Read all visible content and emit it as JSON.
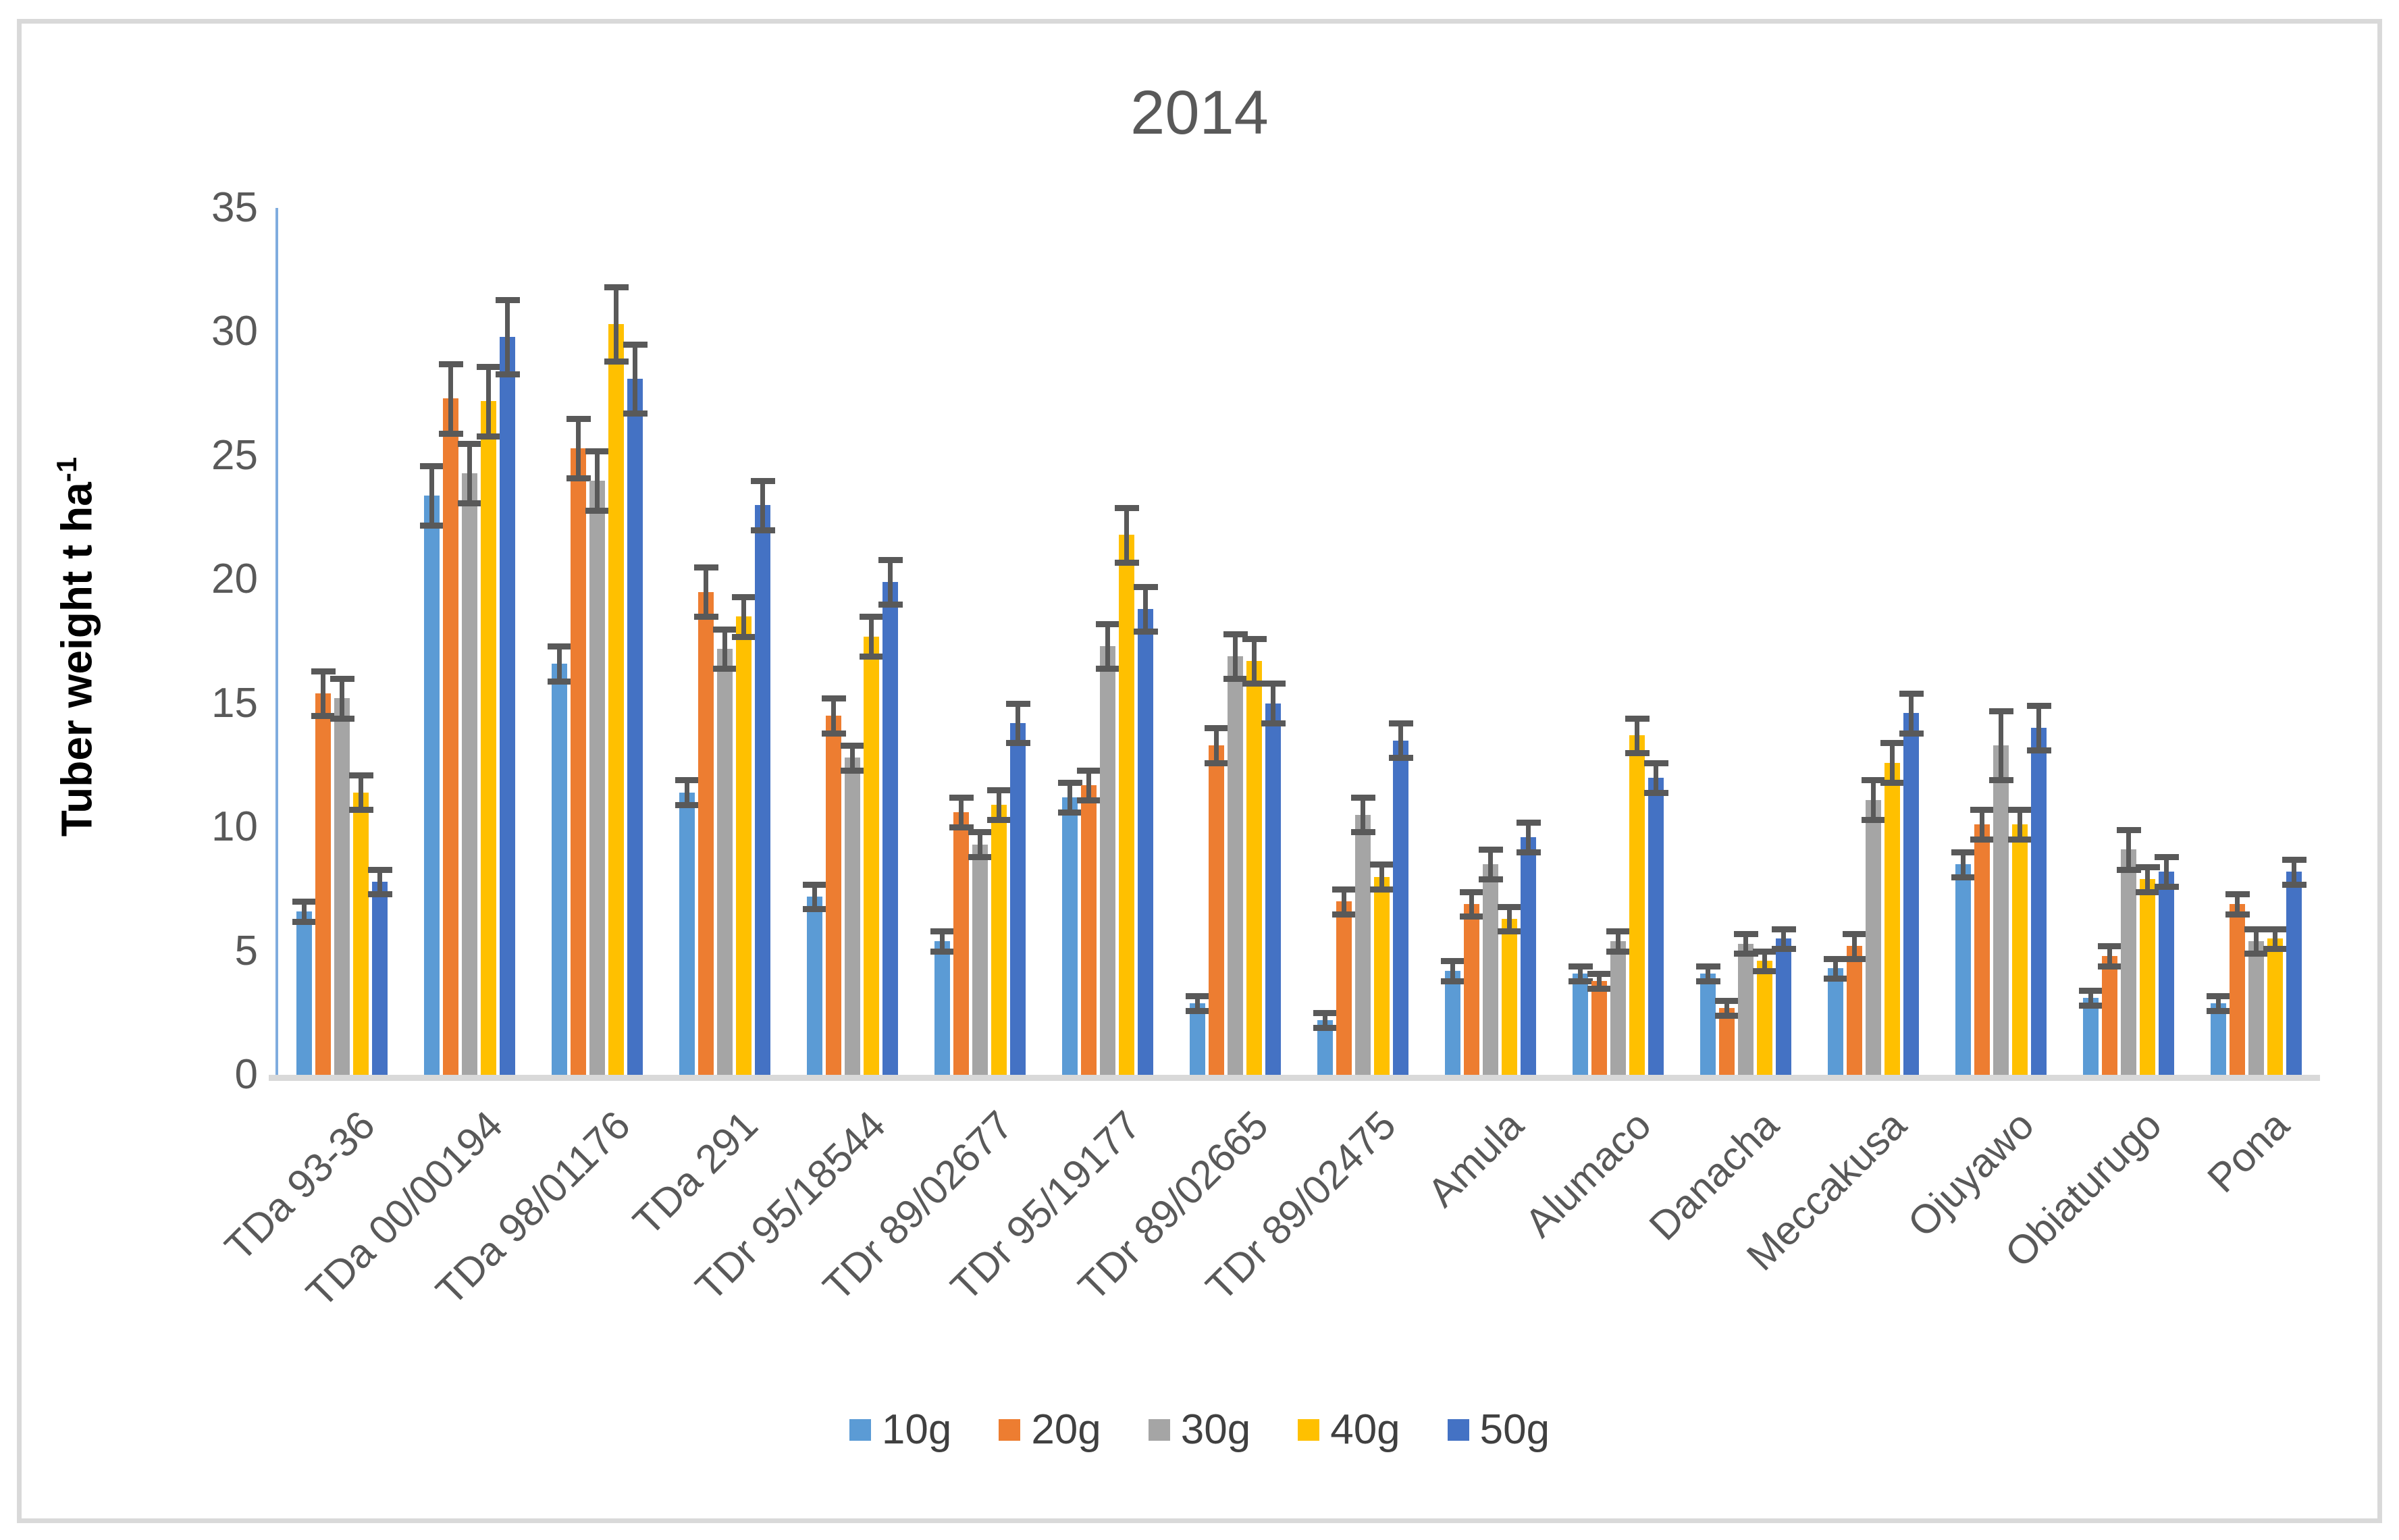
{
  "title": "2014",
  "y_axis": {
    "label": "Tuber weight t ha",
    "label_superscript": "-1",
    "ticks": [
      "35",
      "30",
      "25",
      "20",
      "15",
      "10",
      "5",
      "0"
    ]
  },
  "legend": {
    "items": [
      {
        "label": "10g",
        "color": "#5B9BD5"
      },
      {
        "label": "20g",
        "color": "#ED7D31"
      },
      {
        "label": "30g",
        "color": "#A5A5A5"
      },
      {
        "label": "40g",
        "color": "#FFC000"
      },
      {
        "label": "50g",
        "color": "#4472C4"
      }
    ]
  },
  "colors": {
    "axis_line": "#7FACDF",
    "baseline": "#D9D9D9",
    "error_bar": "#595959",
    "title_text": "#595959",
    "tick_text": "#595959",
    "frame": "#D9D9D9"
  },
  "chart_data": {
    "type": "bar",
    "title": "2014",
    "xlabel": "",
    "ylabel": "Tuber weight t ha-1",
    "ylim": [
      0,
      35
    ],
    "y_tick_step": 5,
    "grid": false,
    "legend_position": "bottom",
    "error_bars": true,
    "categories": [
      "TDa 93-36",
      "TDa 00/00194",
      "TDa 98/01176",
      "TDa 291",
      "TDr 95/18544",
      "TDr 89/02677",
      "TDr 95/19177",
      "TDr 89/02665",
      "TDr 89/02475",
      "Amula",
      "Alumaco",
      "Danacha",
      "Meccakusa",
      "Ojuyawo",
      "Obiaturugo",
      "Pona"
    ],
    "series": [
      {
        "name": "10g",
        "color": "#5B9BD5",
        "values": [
          6.6,
          23.4,
          16.6,
          11.4,
          7.2,
          5.4,
          11.2,
          2.9,
          2.2,
          4.2,
          4.1,
          4.1,
          4.3,
          8.5,
          3.1,
          2.9
        ],
        "errors": [
          0.4,
          1.2,
          0.7,
          0.5,
          0.5,
          0.4,
          0.6,
          0.3,
          0.3,
          0.4,
          0.3,
          0.3,
          0.4,
          0.5,
          0.3,
          0.3
        ]
      },
      {
        "name": "20g",
        "color": "#ED7D31",
        "values": [
          15.4,
          27.3,
          25.3,
          19.5,
          14.5,
          10.6,
          11.7,
          13.3,
          7.0,
          6.9,
          3.8,
          2.7,
          5.2,
          10.1,
          4.8,
          6.9
        ],
        "errors": [
          0.9,
          1.4,
          1.2,
          1.0,
          0.7,
          0.6,
          0.6,
          0.7,
          0.5,
          0.5,
          0.3,
          0.3,
          0.5,
          0.6,
          0.4,
          0.4
        ]
      },
      {
        "name": "30g",
        "color": "#A5A5A5",
        "values": [
          15.2,
          24.3,
          24.0,
          17.2,
          12.8,
          9.3,
          17.3,
          16.9,
          10.5,
          8.5,
          5.4,
          5.3,
          11.1,
          13.3,
          9.1,
          5.4
        ],
        "errors": [
          0.8,
          1.2,
          1.2,
          0.8,
          0.5,
          0.5,
          0.9,
          0.9,
          0.7,
          0.6,
          0.4,
          0.4,
          0.8,
          1.4,
          0.8,
          0.5
        ]
      },
      {
        "name": "40g",
        "color": "#FFC000",
        "values": [
          11.4,
          27.2,
          30.3,
          18.5,
          17.7,
          10.9,
          21.8,
          16.7,
          8.0,
          6.3,
          13.7,
          4.6,
          12.6,
          10.1,
          7.9,
          5.5
        ],
        "errors": [
          0.7,
          1.4,
          1.5,
          0.8,
          0.8,
          0.6,
          1.1,
          0.9,
          0.5,
          0.5,
          0.7,
          0.4,
          0.8,
          0.6,
          0.5,
          0.4
        ]
      },
      {
        "name": "50g",
        "color": "#4472C4",
        "values": [
          7.8,
          29.8,
          28.1,
          23.0,
          19.9,
          14.2,
          18.8,
          15.0,
          13.5,
          9.6,
          12.0,
          5.5,
          14.6,
          14.0,
          8.2,
          8.2
        ],
        "errors": [
          0.5,
          1.5,
          1.4,
          1.0,
          0.9,
          0.8,
          0.9,
          0.8,
          0.7,
          0.6,
          0.6,
          0.4,
          0.8,
          0.9,
          0.6,
          0.5
        ]
      }
    ]
  }
}
